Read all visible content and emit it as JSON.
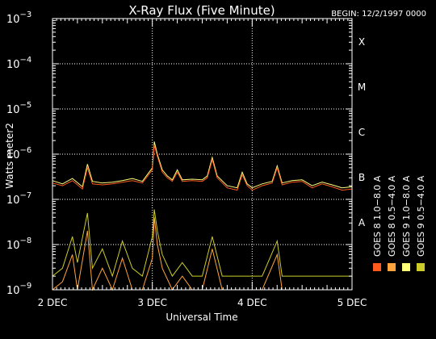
{
  "chart_data": {
    "type": "line",
    "title": "X-Ray Flux (Five Minute)",
    "begin_label": "BEGIN: 12/2/1997 0000",
    "xlabel": "Universal Time",
    "ylabel": "Watts meter2",
    "y_scale": "log",
    "ylim": [
      1e-09,
      0.001
    ],
    "xlim": [
      0,
      3
    ],
    "x_ticks": [
      {
        "x": 0,
        "label": "2 DEC"
      },
      {
        "x": 1,
        "label": "3 DEC"
      },
      {
        "x": 2,
        "label": "4 DEC"
      },
      {
        "x": 3,
        "label": "5 DEC"
      }
    ],
    "y_ticks": [
      {
        "exp": -9,
        "base": "10",
        "sup": "−9"
      },
      {
        "exp": -8,
        "base": "10",
        "sup": "−8"
      },
      {
        "exp": -7,
        "base": "10",
        "sup": "−7"
      },
      {
        "exp": -6,
        "base": "10",
        "sup": "−6"
      },
      {
        "exp": -5,
        "base": "10",
        "sup": "−5"
      },
      {
        "exp": -4,
        "base": "10",
        "sup": "−4"
      },
      {
        "exp": -3,
        "base": "10",
        "sup": "−3"
      }
    ],
    "flare_classes": [
      {
        "label": "A",
        "exp": -8
      },
      {
        "label": "B",
        "exp": -7
      },
      {
        "label": "C",
        "exp": -6
      },
      {
        "label": "M",
        "exp": -5
      },
      {
        "label": "X",
        "exp": -4
      }
    ],
    "grid": {
      "dotted_horizontal": [
        -8,
        -7,
        -6,
        -5,
        -4
      ],
      "dotted_vertical": [
        1,
        2
      ]
    },
    "legend": [
      {
        "label": "GOES 8  1.0−8.0 A",
        "color": "#ff5a1e"
      },
      {
        "label": "GOES 8  0.5−4.0 A",
        "color": "#ffa43c"
      },
      {
        "label": "GOES 9  1.0−8.0 A",
        "color": "#ffff78"
      },
      {
        "label": "GOES 9  0.5−4.0 A",
        "color": "#cccc28"
      }
    ],
    "series": [
      {
        "name": "GOES 8  1.0−8.0 A",
        "color": "#ff5a1e",
        "points": [
          [
            0.0,
            2.3e-07
          ],
          [
            0.1,
            2e-07
          ],
          [
            0.2,
            2.6e-07
          ],
          [
            0.3,
            1.7e-07
          ],
          [
            0.35,
            5e-07
          ],
          [
            0.4,
            2.2e-07
          ],
          [
            0.5,
            2.1e-07
          ],
          [
            0.6,
            2.2e-07
          ],
          [
            0.7,
            2.4e-07
          ],
          [
            0.8,
            2.6e-07
          ],
          [
            0.9,
            2.3e-07
          ],
          [
            1.0,
            4.5e-07
          ],
          [
            1.02,
            1.6e-06
          ],
          [
            1.05,
            9e-07
          ],
          [
            1.1,
            4e-07
          ],
          [
            1.15,
            3e-07
          ],
          [
            1.2,
            2.5e-07
          ],
          [
            1.25,
            4e-07
          ],
          [
            1.3,
            2.5e-07
          ],
          [
            1.4,
            2.6e-07
          ],
          [
            1.5,
            2.5e-07
          ],
          [
            1.55,
            3e-07
          ],
          [
            1.6,
            7.5e-07
          ],
          [
            1.65,
            3e-07
          ],
          [
            1.75,
            1.8e-07
          ],
          [
            1.85,
            1.6e-07
          ],
          [
            1.9,
            3.5e-07
          ],
          [
            1.95,
            2e-07
          ],
          [
            2.0,
            1.6e-07
          ],
          [
            2.1,
            2e-07
          ],
          [
            2.2,
            2.3e-07
          ],
          [
            2.25,
            5e-07
          ],
          [
            2.3,
            2.1e-07
          ],
          [
            2.4,
            2.4e-07
          ],
          [
            2.5,
            2.5e-07
          ],
          [
            2.6,
            1.8e-07
          ],
          [
            2.7,
            2.2e-07
          ],
          [
            2.8,
            1.9e-07
          ],
          [
            2.9,
            1.6e-07
          ],
          [
            3.0,
            1.7e-07
          ]
        ]
      },
      {
        "name": "GOES 8  0.5−4.0 A",
        "color": "#ffa43c",
        "points": [
          [
            0.0,
            1e-09
          ],
          [
            0.1,
            1.5e-09
          ],
          [
            0.2,
            6e-09
          ],
          [
            0.25,
            1e-09
          ],
          [
            0.35,
            2e-08
          ],
          [
            0.4,
            1e-09
          ],
          [
            0.5,
            3e-09
          ],
          [
            0.6,
            1e-09
          ],
          [
            0.7,
            5e-09
          ],
          [
            0.8,
            1e-09
          ],
          [
            0.9,
            1e-09
          ],
          [
            1.0,
            5e-09
          ],
          [
            1.02,
            4e-08
          ],
          [
            1.05,
            1e-08
          ],
          [
            1.1,
            3e-09
          ],
          [
            1.2,
            1e-09
          ],
          [
            1.3,
            2e-09
          ],
          [
            1.4,
            1e-09
          ],
          [
            1.5,
            1e-09
          ],
          [
            1.6,
            8e-09
          ],
          [
            1.7,
            1e-09
          ],
          [
            1.9,
            1e-09
          ],
          [
            2.0,
            1e-09
          ],
          [
            2.1,
            1e-09
          ],
          [
            2.25,
            6e-09
          ],
          [
            2.3,
            1e-09
          ],
          [
            2.5,
            1e-09
          ],
          [
            2.7,
            1e-09
          ],
          [
            2.9,
            1e-09
          ],
          [
            3.0,
            1e-09
          ]
        ]
      },
      {
        "name": "GOES 9  1.0−8.0 A",
        "color": "#ffff78",
        "points": [
          [
            0.0,
            2.6e-07
          ],
          [
            0.1,
            2.2e-07
          ],
          [
            0.2,
            2.9e-07
          ],
          [
            0.3,
            1.9e-07
          ],
          [
            0.35,
            6e-07
          ],
          [
            0.4,
            2.5e-07
          ],
          [
            0.5,
            2.3e-07
          ],
          [
            0.6,
            2.4e-07
          ],
          [
            0.7,
            2.6e-07
          ],
          [
            0.8,
            2.9e-07
          ],
          [
            0.9,
            2.5e-07
          ],
          [
            1.0,
            5e-07
          ],
          [
            1.02,
            1.9e-06
          ],
          [
            1.05,
            1e-06
          ],
          [
            1.1,
            4.5e-07
          ],
          [
            1.15,
            3.3e-07
          ],
          [
            1.2,
            2.7e-07
          ],
          [
            1.25,
            4.5e-07
          ],
          [
            1.3,
            2.7e-07
          ],
          [
            1.4,
            2.8e-07
          ],
          [
            1.5,
            2.7e-07
          ],
          [
            1.55,
            3.3e-07
          ],
          [
            1.6,
            8.5e-07
          ],
          [
            1.65,
            3.3e-07
          ],
          [
            1.75,
            2e-07
          ],
          [
            1.85,
            1.8e-07
          ],
          [
            1.9,
            4e-07
          ],
          [
            1.95,
            2.2e-07
          ],
          [
            2.0,
            1.8e-07
          ],
          [
            2.1,
            2.2e-07
          ],
          [
            2.2,
            2.5e-07
          ],
          [
            2.25,
            5.5e-07
          ],
          [
            2.3,
            2.3e-07
          ],
          [
            2.4,
            2.6e-07
          ],
          [
            2.5,
            2.7e-07
          ],
          [
            2.6,
            2e-07
          ],
          [
            2.7,
            2.4e-07
          ],
          [
            2.8,
            2.1e-07
          ],
          [
            2.9,
            1.8e-07
          ],
          [
            3.0,
            1.9e-07
          ]
        ]
      },
      {
        "name": "GOES 9  0.5−4.0 A",
        "color": "#cccc28",
        "points": [
          [
            0.0,
            2e-09
          ],
          [
            0.1,
            3e-09
          ],
          [
            0.2,
            1.5e-08
          ],
          [
            0.25,
            4e-09
          ],
          [
            0.35,
            5e-08
          ],
          [
            0.4,
            3e-09
          ],
          [
            0.5,
            8e-09
          ],
          [
            0.6,
            2e-09
          ],
          [
            0.7,
            1.2e-08
          ],
          [
            0.8,
            3e-09
          ],
          [
            0.9,
            2e-09
          ],
          [
            1.0,
            1.5e-08
          ],
          [
            1.02,
            6e-08
          ],
          [
            1.05,
            2e-08
          ],
          [
            1.1,
            6e-09
          ],
          [
            1.2,
            2e-09
          ],
          [
            1.3,
            4e-09
          ],
          [
            1.4,
            2e-09
          ],
          [
            1.5,
            2e-09
          ],
          [
            1.6,
            1.5e-08
          ],
          [
            1.7,
            2e-09
          ],
          [
            1.9,
            2e-09
          ],
          [
            2.0,
            2e-09
          ],
          [
            2.1,
            2e-09
          ],
          [
            2.25,
            1.2e-08
          ],
          [
            2.3,
            2e-09
          ],
          [
            2.5,
            2e-09
          ],
          [
            2.7,
            2e-09
          ],
          [
            2.9,
            2e-09
          ],
          [
            3.0,
            2e-09
          ]
        ]
      }
    ]
  }
}
